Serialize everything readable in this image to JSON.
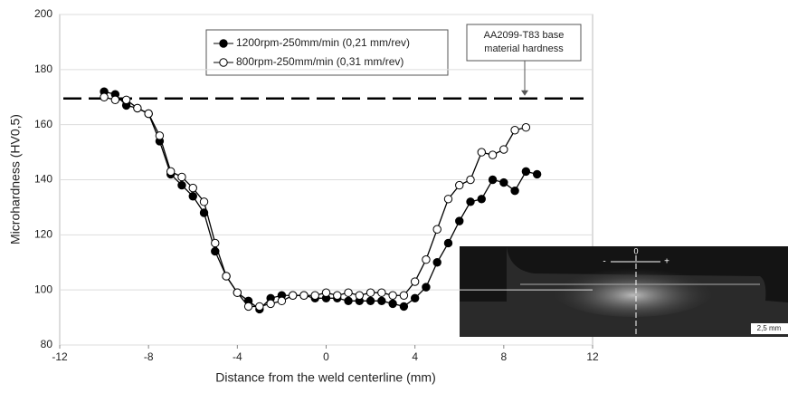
{
  "chart_data": {
    "type": "line",
    "xlabel": "Distance from the weld centerline (mm)",
    "ylabel": "Microhardness (HV0,5)",
    "xlim": [
      -12,
      12
    ],
    "xticks": [
      -12,
      -8,
      -4,
      0,
      4,
      8,
      12
    ],
    "ylim": [
      80,
      200
    ],
    "yticks": [
      80,
      100,
      120,
      140,
      160,
      180,
      200
    ],
    "grid": true,
    "series": [
      {
        "name": "1200rpm-250mm/min (0,21 mm/rev)",
        "color": "#000000",
        "marker_fill": "#000000",
        "x": [
          -10,
          -9.5,
          -9,
          -8.5,
          -8,
          -7.5,
          -7,
          -6.5,
          -6,
          -5.5,
          -5,
          -4.5,
          -4,
          -3.5,
          -3,
          -2.5,
          -2,
          -1.5,
          -1,
          -0.5,
          0,
          0.5,
          1,
          1.5,
          2,
          2.5,
          3,
          3.5,
          4,
          4.5,
          5,
          5.5,
          6,
          6.5,
          7,
          7.5,
          8,
          8.5,
          9,
          9.5
        ],
        "values": [
          172,
          171,
          167,
          166,
          164,
          154,
          142,
          138,
          134,
          128,
          114,
          105,
          99,
          96,
          93,
          97,
          98,
          98,
          98,
          97,
          97,
          97,
          96,
          96,
          96,
          96,
          95,
          94,
          97,
          101,
          110,
          117,
          125,
          132,
          133,
          140,
          139,
          136,
          143,
          142
        ]
      },
      {
        "name": "800rpm-250mm/min (0,31 mm/rev)",
        "color": "#000000",
        "marker_fill": "#ffffff",
        "x": [
          -10,
          -9.5,
          -9,
          -8.5,
          -8,
          -7.5,
          -7,
          -6.5,
          -6,
          -5.5,
          -5,
          -4.5,
          -4,
          -3.5,
          -3,
          -2.5,
          -2,
          -1.5,
          -1,
          -0.5,
          0,
          0.5,
          1,
          1.5,
          2,
          2.5,
          3,
          3.5,
          4,
          4.5,
          5,
          5.5,
          6,
          6.5,
          7,
          7.5,
          8,
          8.5,
          9
        ],
        "values": [
          170,
          169,
          169,
          166,
          164,
          156,
          143,
          141,
          137,
          132,
          117,
          105,
          99,
          94,
          94,
          95,
          96,
          98,
          98,
          98,
          99,
          98,
          99,
          98,
          99,
          99,
          98,
          98,
          103,
          111,
          122,
          133,
          138,
          140,
          150,
          149,
          151,
          158,
          159
        ]
      }
    ],
    "reference_line": {
      "value": 169.5,
      "label": [
        "AA2099-T83 base",
        "material hardness"
      ]
    },
    "inset": {
      "center": "0",
      "minus": "-",
      "plus": "+",
      "scale": "2,5 mm"
    }
  }
}
